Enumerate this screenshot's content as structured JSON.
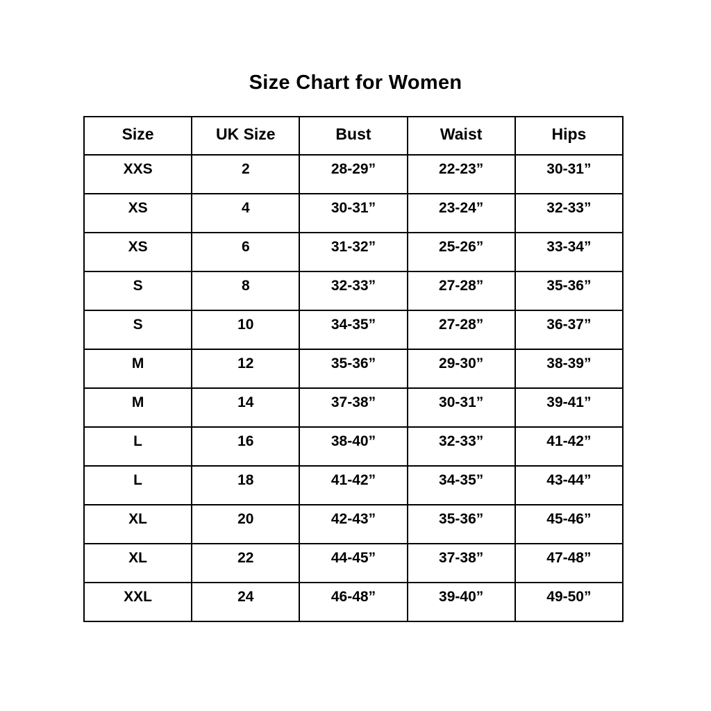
{
  "page": {
    "title": "Size Chart for Women"
  },
  "colors": {
    "background": "#ffffff",
    "border": "#000000",
    "text": "#000000"
  },
  "table": {
    "columns": [
      "Size",
      "UK Size",
      "Bust",
      "Waist",
      "Hips"
    ],
    "rows": [
      [
        "XXS",
        "2",
        "28-29”",
        "22-23”",
        "30-31”"
      ],
      [
        "XS",
        "4",
        "30-31”",
        "23-24”",
        "32-33”"
      ],
      [
        "XS",
        "6",
        "31-32”",
        "25-26”",
        "33-34”"
      ],
      [
        "S",
        "8",
        "32-33”",
        "27-28”",
        "35-36”"
      ],
      [
        "S",
        "10",
        "34-35”",
        "27-28”",
        "36-37”"
      ],
      [
        "M",
        "12",
        "35-36”",
        "29-30”",
        "38-39”"
      ],
      [
        "M",
        "14",
        "37-38”",
        "30-31”",
        "39-41”"
      ],
      [
        "L",
        "16",
        "38-40”",
        "32-33”",
        "41-42”"
      ],
      [
        "L",
        "18",
        "41-42”",
        "34-35”",
        "43-44”"
      ],
      [
        "XL",
        "20",
        "42-43”",
        "35-36”",
        "45-46”"
      ],
      [
        "XL",
        "22",
        "44-45”",
        "37-38”",
        "47-48”"
      ],
      [
        "XXL",
        "24",
        "46-48”",
        "39-40”",
        "49-50”"
      ]
    ]
  },
  "chart_data": {
    "type": "table",
    "title": "Size Chart for Women",
    "columns": [
      "Size",
      "UK Size",
      "Bust",
      "Waist",
      "Hips"
    ],
    "rows": [
      [
        "XXS",
        "2",
        "28-29”",
        "22-23”",
        "30-31”"
      ],
      [
        "XS",
        "4",
        "30-31”",
        "23-24”",
        "32-33”"
      ],
      [
        "XS",
        "6",
        "31-32”",
        "25-26”",
        "33-34”"
      ],
      [
        "S",
        "8",
        "32-33”",
        "27-28”",
        "35-36”"
      ],
      [
        "S",
        "10",
        "34-35”",
        "27-28”",
        "36-37”"
      ],
      [
        "M",
        "12",
        "35-36”",
        "29-30”",
        "38-39”"
      ],
      [
        "M",
        "14",
        "37-38”",
        "30-31”",
        "39-41”"
      ],
      [
        "L",
        "16",
        "38-40”",
        "32-33”",
        "41-42”"
      ],
      [
        "L",
        "18",
        "41-42”",
        "34-35”",
        "43-44”"
      ],
      [
        "XL",
        "20",
        "42-43”",
        "35-36”",
        "45-46”"
      ],
      [
        "XL",
        "22",
        "44-45”",
        "37-38”",
        "47-48”"
      ],
      [
        "XXL",
        "24",
        "46-48”",
        "39-40”",
        "49-50”"
      ]
    ]
  }
}
